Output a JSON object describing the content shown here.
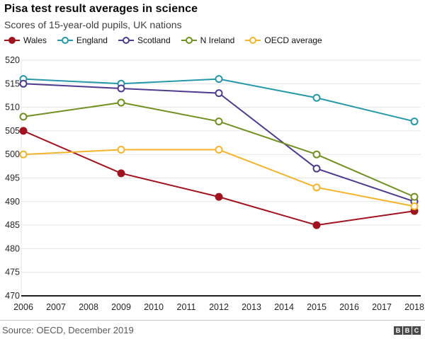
{
  "header": {
    "title": "Pisa test result averages in science",
    "subtitle": "Scores of 15-year-old pupils, UK nations"
  },
  "chart_data": {
    "type": "line",
    "title": "Pisa test result averages in science",
    "subtitle": "Scores of 15-year-old pupils, UK nations",
    "x": [
      2006,
      2009,
      2012,
      2015,
      2018
    ],
    "series": [
      {
        "name": "Wales",
        "color": "#a1131e",
        "marker": "filled",
        "values": [
          505,
          496,
          491,
          485,
          488
        ]
      },
      {
        "name": "England",
        "color": "#2597a8",
        "marker": "open",
        "values": [
          516,
          515,
          516,
          512,
          507
        ]
      },
      {
        "name": "Scotland",
        "color": "#4f3a8f",
        "marker": "open",
        "values": [
          515,
          514,
          513,
          497,
          490
        ]
      },
      {
        "name": "N Ireland",
        "color": "#70901f",
        "marker": "open",
        "values": [
          508,
          511,
          507,
          500,
          491
        ]
      },
      {
        "name": "OECD average",
        "color": "#f4b32a",
        "marker": "open",
        "values": [
          500,
          501,
          501,
          493,
          489
        ]
      }
    ],
    "xlim": [
      2006,
      2018
    ],
    "ylim": [
      470,
      520
    ],
    "xticks": [
      2006,
      2007,
      2008,
      2009,
      2010,
      2011,
      2012,
      2013,
      2014,
      2015,
      2016,
      2017,
      2018
    ],
    "yticks": [
      470,
      475,
      480,
      485,
      490,
      495,
      500,
      505,
      510,
      515,
      520
    ],
    "xlabel": "",
    "ylabel": "",
    "grid": true,
    "legend_position": "top",
    "colors": {
      "gridline": "#e4e4e4",
      "axis": "#1f1f1f",
      "tick_text": "#262626"
    }
  },
  "footer": {
    "source": "Source: OECD, December 2019",
    "logo_letters": [
      "B",
      "B",
      "C"
    ]
  }
}
